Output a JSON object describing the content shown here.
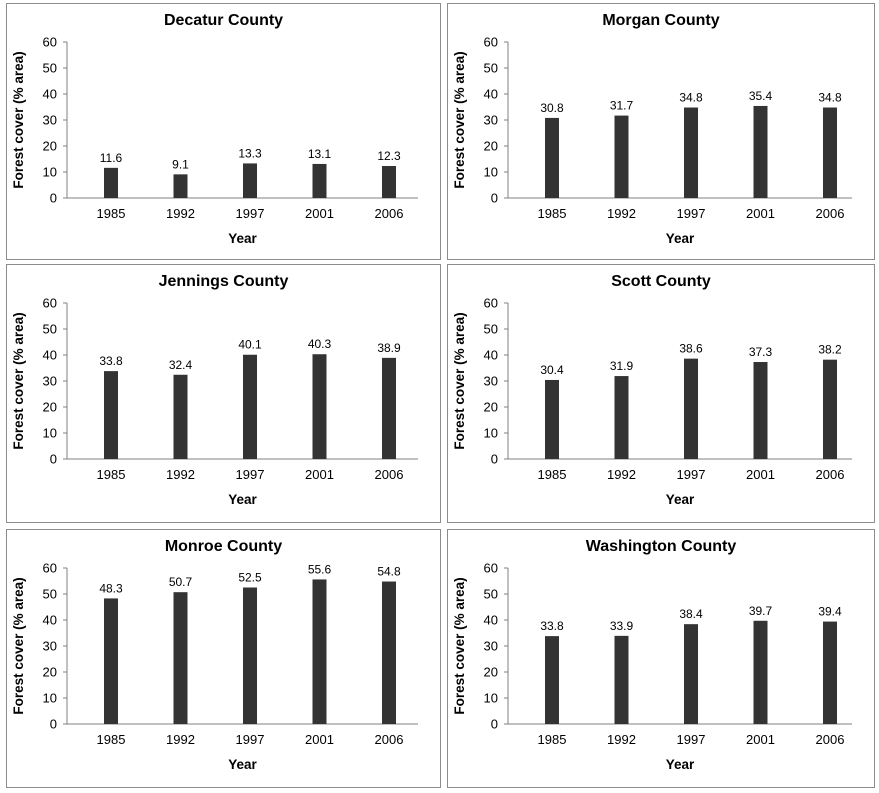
{
  "chart_data": [
    {
      "type": "bar",
      "title": "Decatur County",
      "categories": [
        "1985",
        "1992",
        "1997",
        "2001",
        "2006"
      ],
      "values": [
        11.6,
        9.1,
        13.3,
        13.1,
        12.3
      ],
      "data_labels": [
        "11.6",
        "9.1",
        "13.3",
        "13.1",
        "12.3"
      ],
      "xlabel": "Year",
      "ylabel": "Forest cover (% area)",
      "ylim": [
        0,
        60
      ],
      "yticks": [
        "0",
        "10",
        "20",
        "30",
        "40",
        "50",
        "60"
      ],
      "grid": false,
      "bar_color": "#333333"
    },
    {
      "type": "bar",
      "title": "Morgan County",
      "categories": [
        "1985",
        "1992",
        "1997",
        "2001",
        "2006"
      ],
      "values": [
        30.8,
        31.7,
        34.8,
        35.4,
        34.8
      ],
      "data_labels": [
        "30.8",
        "31.7",
        "34.8",
        "35.4",
        "34.8"
      ],
      "xlabel": "Year",
      "ylabel": "Forest cover (% area)",
      "ylim": [
        0,
        60
      ],
      "yticks": [
        "0",
        "10",
        "20",
        "30",
        "40",
        "50",
        "60"
      ],
      "grid": false,
      "bar_color": "#333333"
    },
    {
      "type": "bar",
      "title": "Jennings County",
      "categories": [
        "1985",
        "1992",
        "1997",
        "2001",
        "2006"
      ],
      "values": [
        33.8,
        32.4,
        40.1,
        40.3,
        38.9
      ],
      "data_labels": [
        "33.8",
        "32.4",
        "40.1",
        "40.3",
        "38.9"
      ],
      "xlabel": "Year",
      "ylabel": "Forest cover (% area)",
      "ylim": [
        0,
        60
      ],
      "yticks": [
        "0",
        "10",
        "20",
        "30",
        "40",
        "50",
        "60"
      ],
      "grid": false,
      "bar_color": "#333333"
    },
    {
      "type": "bar",
      "title": "Scott County",
      "categories": [
        "1985",
        "1992",
        "1997",
        "2001",
        "2006"
      ],
      "values": [
        30.4,
        31.9,
        38.6,
        37.3,
        38.2
      ],
      "data_labels": [
        "30.4",
        "31.9",
        "38.6",
        "37.3",
        "38.2"
      ],
      "xlabel": "Year",
      "ylabel": "Forest cover (% area)",
      "ylim": [
        0,
        60
      ],
      "yticks": [
        "0",
        "10",
        "20",
        "30",
        "40",
        "50",
        "60"
      ],
      "grid": false,
      "bar_color": "#333333"
    },
    {
      "type": "bar",
      "title": "Monroe County",
      "categories": [
        "1985",
        "1992",
        "1997",
        "2001",
        "2006"
      ],
      "values": [
        48.3,
        50.7,
        52.5,
        55.6,
        54.8
      ],
      "data_labels": [
        "48.3",
        "50.7",
        "52.5",
        "55.6",
        "54.8"
      ],
      "xlabel": "Year",
      "ylabel": "Forest cover (% area)",
      "ylim": [
        0,
        60
      ],
      "yticks": [
        "0",
        "10",
        "20",
        "30",
        "40",
        "50",
        "60"
      ],
      "grid": false,
      "bar_color": "#333333"
    },
    {
      "type": "bar",
      "title": "Washington County",
      "categories": [
        "1985",
        "1992",
        "1997",
        "2001",
        "2006"
      ],
      "values": [
        33.8,
        33.9,
        38.4,
        39.7,
        39.4
      ],
      "data_labels": [
        "33.8",
        "33.9",
        "38.4",
        "39.7",
        "39.4"
      ],
      "xlabel": "Year",
      "ylabel": "Forest cover (% area)",
      "ylim": [
        0,
        60
      ],
      "yticks": [
        "0",
        "10",
        "20",
        "30",
        "40",
        "50",
        "60"
      ],
      "grid": false,
      "bar_color": "#333333"
    }
  ]
}
